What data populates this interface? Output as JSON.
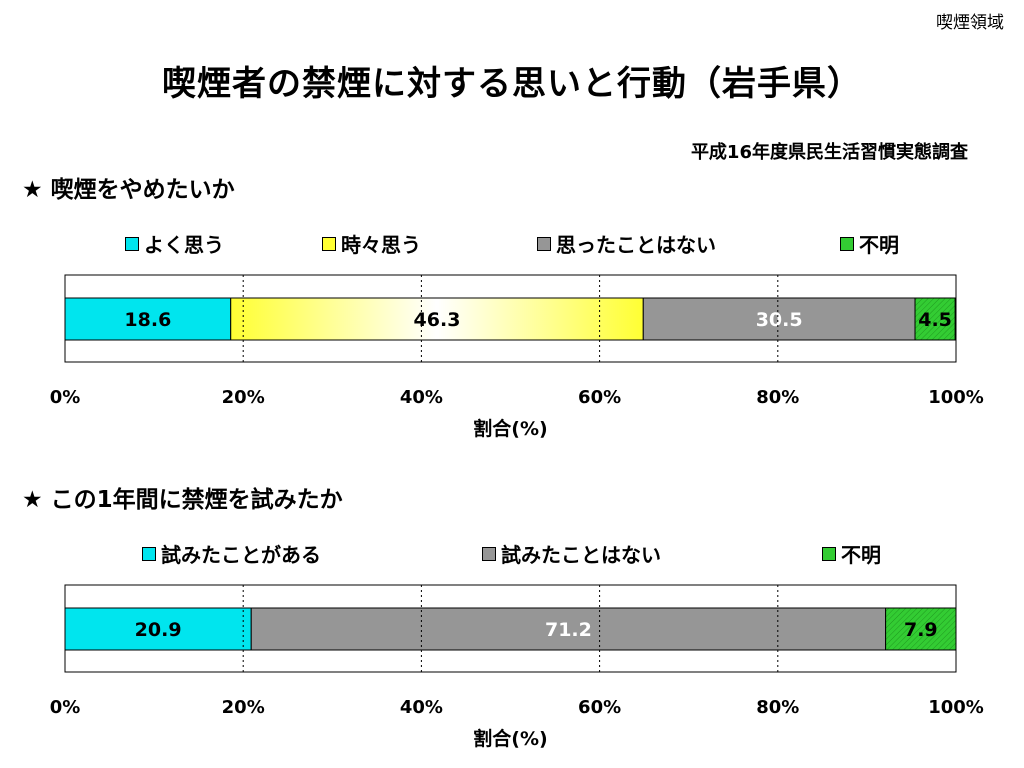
{
  "header": {
    "corner_label": "喫煙領域",
    "title": "喫煙者の禁煙に対する思いと行動（岩手県）",
    "source": "平成16年度県民生活習慣実態調査"
  },
  "colors": {
    "cyan": "#00e5ee",
    "yellow": "#ffff33",
    "gray": "#969696",
    "green": "#33cc33"
  },
  "chart_data": [
    {
      "type": "bar",
      "orientation": "horizontal-stacked-100",
      "title": "★ 喫煙をやめたいか",
      "xlabel": "割合(%)",
      "xlim": [
        0,
        100
      ],
      "x_ticks": [
        "0%",
        "20%",
        "40%",
        "60%",
        "80%",
        "100%"
      ],
      "grid": "vertical dotted",
      "legend_position": "top",
      "series": [
        {
          "name": "よく思う",
          "value": 18.6,
          "label": "18.6",
          "color": "#00e5ee",
          "label_color": "#000000"
        },
        {
          "name": "時々思う",
          "value": 46.3,
          "label": "46.3",
          "color": "#ffff33",
          "label_color": "#000000"
        },
        {
          "name": "思ったことはない",
          "value": 30.5,
          "label": "30.5",
          "color": "#969696",
          "label_color": "#ffffff"
        },
        {
          "name": "不明",
          "value": 4.5,
          "label": "4.5",
          "color": "#33cc33",
          "label_color": "#000000"
        }
      ]
    },
    {
      "type": "bar",
      "orientation": "horizontal-stacked-100",
      "title": "★ この1年間に禁煙を試みたか",
      "xlabel": "割合(%)",
      "xlim": [
        0,
        100
      ],
      "x_ticks": [
        "0%",
        "20%",
        "40%",
        "60%",
        "80%",
        "100%"
      ],
      "grid": "vertical dotted",
      "legend_position": "top",
      "series": [
        {
          "name": "試みたことがある",
          "value": 20.9,
          "label": "20.9",
          "color": "#00e5ee",
          "label_color": "#000000"
        },
        {
          "name": "試みたことはない",
          "value": 71.2,
          "label": "71.2",
          "color": "#969696",
          "label_color": "#ffffff"
        },
        {
          "name": "不明",
          "value": 7.9,
          "label": "7.9",
          "color": "#33cc33",
          "label_color": "#000000"
        }
      ]
    }
  ]
}
